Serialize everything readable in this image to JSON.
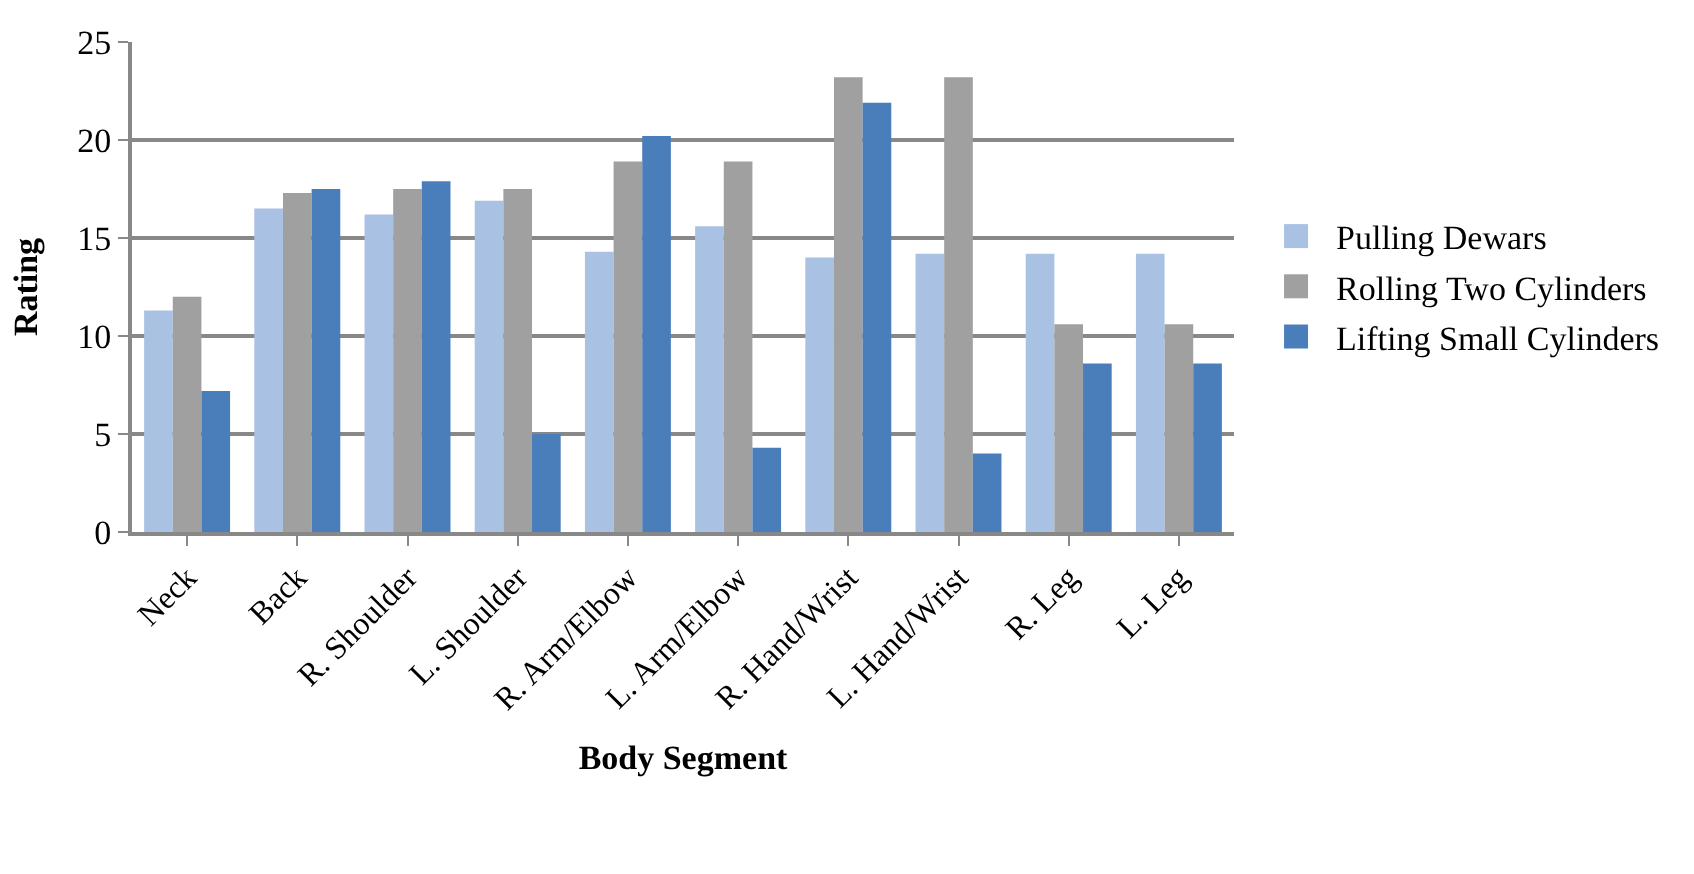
{
  "chart_data": {
    "type": "bar",
    "xlabel": "Body Segment",
    "ylabel": "Rating",
    "categories": [
      "Neck",
      "Back",
      "R. Shoulder",
      "L. Shoulder",
      "R. Arm/Elbow",
      "L. Arm/Elbow",
      "R. Hand/Wrist",
      "L. Hand/Wrist",
      "R. Leg",
      "L. Leg"
    ],
    "series": [
      {
        "name": "Pulling Dewars",
        "color": "#a9c1e3",
        "values": [
          11.3,
          16.5,
          16.2,
          16.9,
          14.3,
          15.6,
          14.0,
          14.2,
          14.2,
          14.2
        ]
      },
      {
        "name": "Rolling Two Cylinders",
        "color": "#a0a0a0",
        "values": [
          12.0,
          17.3,
          17.5,
          17.5,
          18.9,
          18.9,
          23.2,
          23.2,
          10.6,
          10.6
        ]
      },
      {
        "name": "Lifting Small Cylinders",
        "color": "#4a7ebb",
        "values": [
          7.2,
          17.5,
          17.9,
          5.0,
          20.2,
          4.3,
          21.9,
          4.0,
          8.6,
          8.6
        ]
      }
    ],
    "ylim": [
      0,
      25
    ],
    "yticks": [
      0,
      5,
      10,
      15,
      20,
      25
    ],
    "grid": "y",
    "legend": "right"
  }
}
